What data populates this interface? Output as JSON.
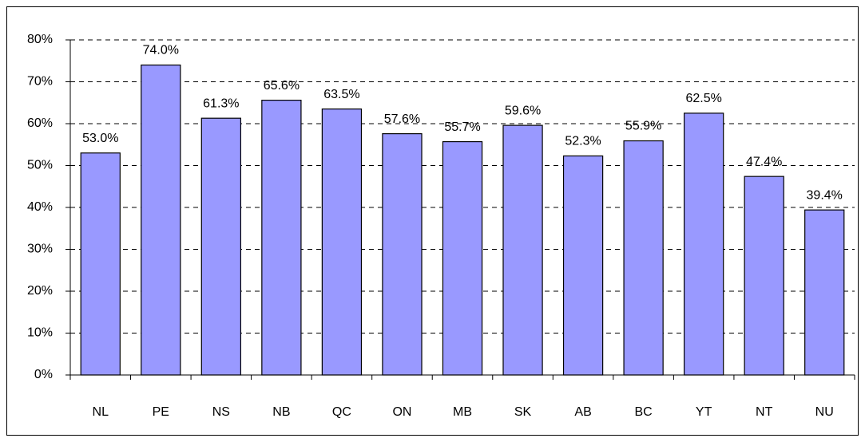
{
  "chart_data": {
    "type": "bar",
    "categories": [
      "NL",
      "PE",
      "NS",
      "NB",
      "QC",
      "ON",
      "MB",
      "SK",
      "AB",
      "BC",
      "YT",
      "NT",
      "NU"
    ],
    "values": [
      53.0,
      74.0,
      61.3,
      65.6,
      63.5,
      57.6,
      55.7,
      59.6,
      52.3,
      55.9,
      62.5,
      47.4,
      39.4
    ],
    "value_labels": [
      "53.0%",
      "74.0%",
      "61.3%",
      "65.6%",
      "63.5%",
      "57.6%",
      "55.7%",
      "59.6%",
      "52.3%",
      "55.9%",
      "62.5%",
      "47.4%",
      "39.4%"
    ],
    "color": "#9999ff",
    "ylim": [
      0,
      80
    ],
    "yticks": [
      {
        "value": 0,
        "label": "0%"
      },
      {
        "value": 10,
        "label": "10%"
      },
      {
        "value": 20,
        "label": "20%"
      },
      {
        "value": 30,
        "label": "30%"
      },
      {
        "value": 40,
        "label": "40%"
      },
      {
        "value": 50,
        "label": "50%"
      },
      {
        "value": 60,
        "label": "60%"
      },
      {
        "value": 70,
        "label": "70%"
      },
      {
        "value": 80,
        "label": "80%"
      }
    ],
    "grid": true
  }
}
